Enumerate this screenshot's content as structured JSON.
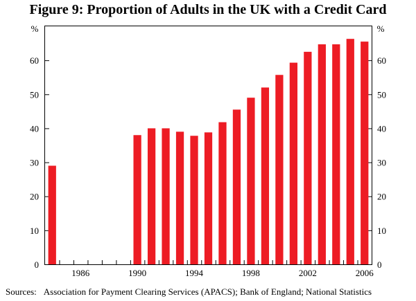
{
  "title": "Figure 9: Proportion of Adults in the UK with a Credit Card",
  "source": {
    "label": "Sources:",
    "text": "Association for Payment Clearing Services (APACS); Bank of England; National Statistics"
  },
  "chart_data": {
    "type": "bar",
    "title": "Figure 9: Proportion of Adults in the UK with a Credit Card",
    "xlabel": "",
    "ylabel": "%",
    "ylabel_right": "%",
    "ylim": [
      0,
      70
    ],
    "yticks": [
      0,
      10,
      20,
      30,
      40,
      50,
      60
    ],
    "x_range": [
      1983.5,
      2006.5
    ],
    "xtick_labels": [
      "1986",
      "1990",
      "1994",
      "1998",
      "2002",
      "2006"
    ],
    "categories": [
      "1984",
      "1985",
      "1986",
      "1987",
      "1988",
      "1989",
      "1990",
      "1991",
      "1992",
      "1993",
      "1994",
      "1995",
      "1996",
      "1997",
      "1998",
      "1999",
      "2000",
      "2001",
      "2002",
      "2003",
      "2004",
      "2005",
      "2006"
    ],
    "values": [
      29,
      null,
      null,
      null,
      null,
      null,
      38,
      40,
      40,
      39,
      37.8,
      38.8,
      41.8,
      45.5,
      49,
      52,
      55.7,
      59.3,
      62.5,
      64.7,
      64.7,
      66.3,
      65.5
    ],
    "bar_color": "#ed1c24",
    "grid": false,
    "legend": "none"
  }
}
